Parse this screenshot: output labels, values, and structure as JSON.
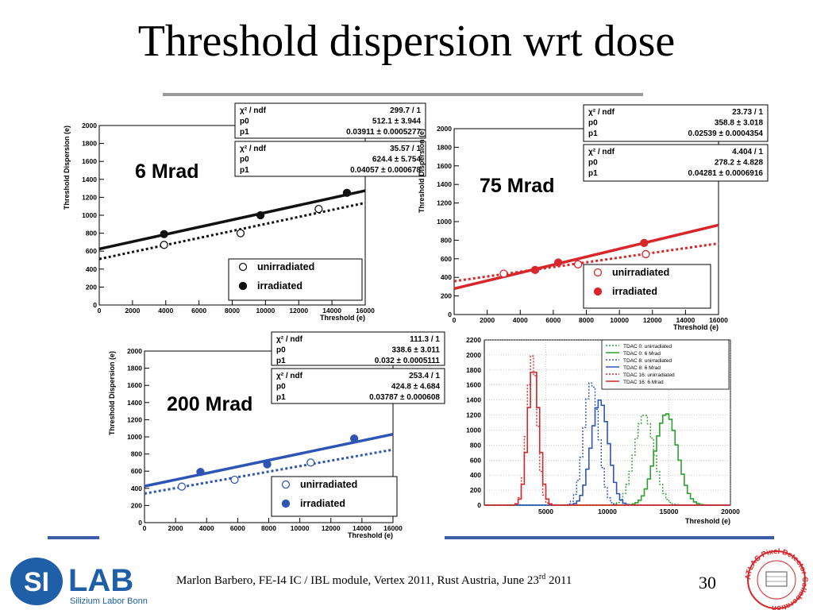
{
  "slide": {
    "title": "Threshold dispersion wrt dose",
    "footer": {
      "text": "Marlon Barbero, FE-I4 IC / IBL module, Vertex 2011, Rust Austria, June 23",
      "sup": "rd",
      "year": " 2011"
    },
    "page_number": "30",
    "logo": {
      "si": "SI",
      "lab": "LAB",
      "subtitle": "Silizium Labor Bonn"
    },
    "badge": {
      "text": "ATLAS Pixel Detector Collaboration"
    },
    "colors": {
      "rule_top": "#9a9a9a",
      "rule_bottom": "#3b5da8",
      "logo_blue": "#1f5fa8"
    }
  },
  "chart_data": [
    {
      "type": "scatter",
      "dose_label": "6 Mrad",
      "color": "#111111",
      "xlabel": "Threshold (e)",
      "ylabel": "Threshold Dispersion (e)",
      "xlim": [
        0,
        16000
      ],
      "ylim": [
        0,
        2000
      ],
      "xticks": [
        0,
        2000,
        4000,
        6000,
        8000,
        10000,
        12000,
        14000,
        16000
      ],
      "yticks": [
        0,
        200,
        400,
        600,
        800,
        1000,
        1200,
        1400,
        1600,
        1800,
        2000
      ],
      "fits": [
        {
          "rows": [
            [
              "χ² / ndf",
              "299.7 / 1"
            ],
            [
              "p0",
              "512.1 ± 3.944"
            ],
            [
              "p1",
              "0.03911 ± 0.0005277"
            ]
          ],
          "p0": 512.1,
          "p1": 0.03911,
          "style": "dotted"
        },
        {
          "rows": [
            [
              "χ² / ndf",
              "35.57 / 1"
            ],
            [
              "p0",
              "624.4 ± 5.754"
            ],
            [
              "p1",
              "0.04057 ± 0.000678"
            ]
          ],
          "p0": 624.4,
          "p1": 0.04057,
          "style": "solid"
        }
      ],
      "series": [
        {
          "name": "unirradiated",
          "marker": "open",
          "x": [
            3900,
            8500,
            13200
          ],
          "y": [
            670,
            800,
            1070
          ]
        },
        {
          "name": "irradiated",
          "marker": "filled",
          "x": [
            3900,
            9700,
            14900
          ],
          "y": [
            790,
            1000,
            1250
          ]
        }
      ]
    },
    {
      "type": "scatter",
      "dose_label": "75 Mrad",
      "color": "#d8262a",
      "xlabel": "Threshold (e)",
      "ylabel": "Threshold Dispersion (e)",
      "xlim": [
        0,
        16000
      ],
      "ylim": [
        0,
        2000
      ],
      "xticks": [
        0,
        2000,
        4000,
        6000,
        8000,
        10000,
        12000,
        14000,
        16000
      ],
      "yticks": [
        0,
        200,
        400,
        600,
        800,
        1000,
        1200,
        1400,
        1600,
        1800,
        2000
      ],
      "fits": [
        {
          "rows": [
            [
              "χ² / ndf",
              "23.73 / 1"
            ],
            [
              "p0",
              "358.8 ± 3.018"
            ],
            [
              "p1",
              "0.02539 ± 0.0004354"
            ]
          ],
          "p0": 358.8,
          "p1": 0.02539,
          "style": "dotted"
        },
        {
          "rows": [
            [
              "χ² / ndf",
              "4.404 / 1"
            ],
            [
              "p0",
              "278.2 ± 4.828"
            ],
            [
              "p1",
              "0.04281 ± 0.0006916"
            ]
          ],
          "p0": 278.2,
          "p1": 0.04281,
          "style": "solid"
        }
      ],
      "series": [
        {
          "name": "unirradiated",
          "marker": "open",
          "x": [
            3000,
            7500,
            11600
          ],
          "y": [
            440,
            540,
            650
          ]
        },
        {
          "name": "irradiated",
          "marker": "filled",
          "x": [
            4900,
            6300,
            11500
          ],
          "y": [
            480,
            560,
            770
          ]
        }
      ]
    },
    {
      "type": "scatter",
      "dose_label": "200 Mrad",
      "color": "#2e55b5",
      "xlabel": "Threshold (e)",
      "ylabel": "Threshold Dispersion (e)",
      "xlim": [
        0,
        16000
      ],
      "ylim": [
        0,
        2000
      ],
      "xticks": [
        0,
        2000,
        4000,
        6000,
        8000,
        10000,
        12000,
        14000,
        16000
      ],
      "yticks": [
        0,
        200,
        400,
        600,
        800,
        1000,
        1200,
        1400,
        1600,
        1800,
        2000
      ],
      "fits": [
        {
          "rows": [
            [
              "χ² / ndf",
              "111.3 / 1"
            ],
            [
              "p0",
              "338.6 ± 3.011"
            ],
            [
              "p1",
              "0.032 ± 0.0005111"
            ]
          ],
          "p0": 338.6,
          "p1": 0.032,
          "style": "dotted"
        },
        {
          "rows": [
            [
              "χ² / ndf",
              "253.4 / 1"
            ],
            [
              "p0",
              "424.8 ± 4.684"
            ],
            [
              "p1",
              "0.03787 ± 0.000608"
            ]
          ],
          "p0": 424.8,
          "p1": 0.03787,
          "style": "solid"
        }
      ],
      "series": [
        {
          "name": "unirradiated",
          "marker": "open",
          "x": [
            2400,
            5800,
            10700
          ],
          "y": [
            420,
            500,
            700
          ]
        },
        {
          "name": "irradiated",
          "marker": "filled",
          "x": [
            3600,
            7900,
            13500
          ],
          "y": [
            590,
            680,
            980
          ]
        }
      ]
    },
    {
      "type": "line",
      "xlabel": "Threshold (e)",
      "ylabel": "",
      "xlim": [
        0,
        20000
      ],
      "ylim": [
        0,
        2200
      ],
      "xticks": [
        5000,
        10000,
        15000,
        20000
      ],
      "yticks": [
        0,
        200,
        400,
        600,
        800,
        1000,
        1200,
        1400,
        1600,
        1800,
        2000,
        2200
      ],
      "grid": true,
      "legend_position": "top-right",
      "series": [
        {
          "name": "TDAC 0: unirradiated",
          "color": "#2ca02c",
          "style": "dotted",
          "mean": 13000,
          "sigma": 800,
          "peak": 1210
        },
        {
          "name": "TDAC 0: 6 Mrad",
          "color": "#2ca02c",
          "style": "solid",
          "mean": 14800,
          "sigma": 900,
          "peak": 1220
        },
        {
          "name": "TDAC 8: unirradiated",
          "color": "#2e55b5",
          "style": "dotted",
          "mean": 8700,
          "sigma": 600,
          "peak": 1640
        },
        {
          "name": "TDAC 8: 6 Mrad",
          "color": "#2e55b5",
          "style": "solid",
          "mean": 9400,
          "sigma": 700,
          "peak": 1400
        },
        {
          "name": "TDAC 16: unirradiated",
          "color": "#d8262a",
          "style": "dotted",
          "mean": 3900,
          "sigma": 420,
          "peak": 1990
        },
        {
          "name": "TDAC 16: 6 Mrad",
          "color": "#d8262a",
          "style": "solid",
          "mean": 4000,
          "sigma": 450,
          "peak": 1840
        }
      ]
    }
  ]
}
